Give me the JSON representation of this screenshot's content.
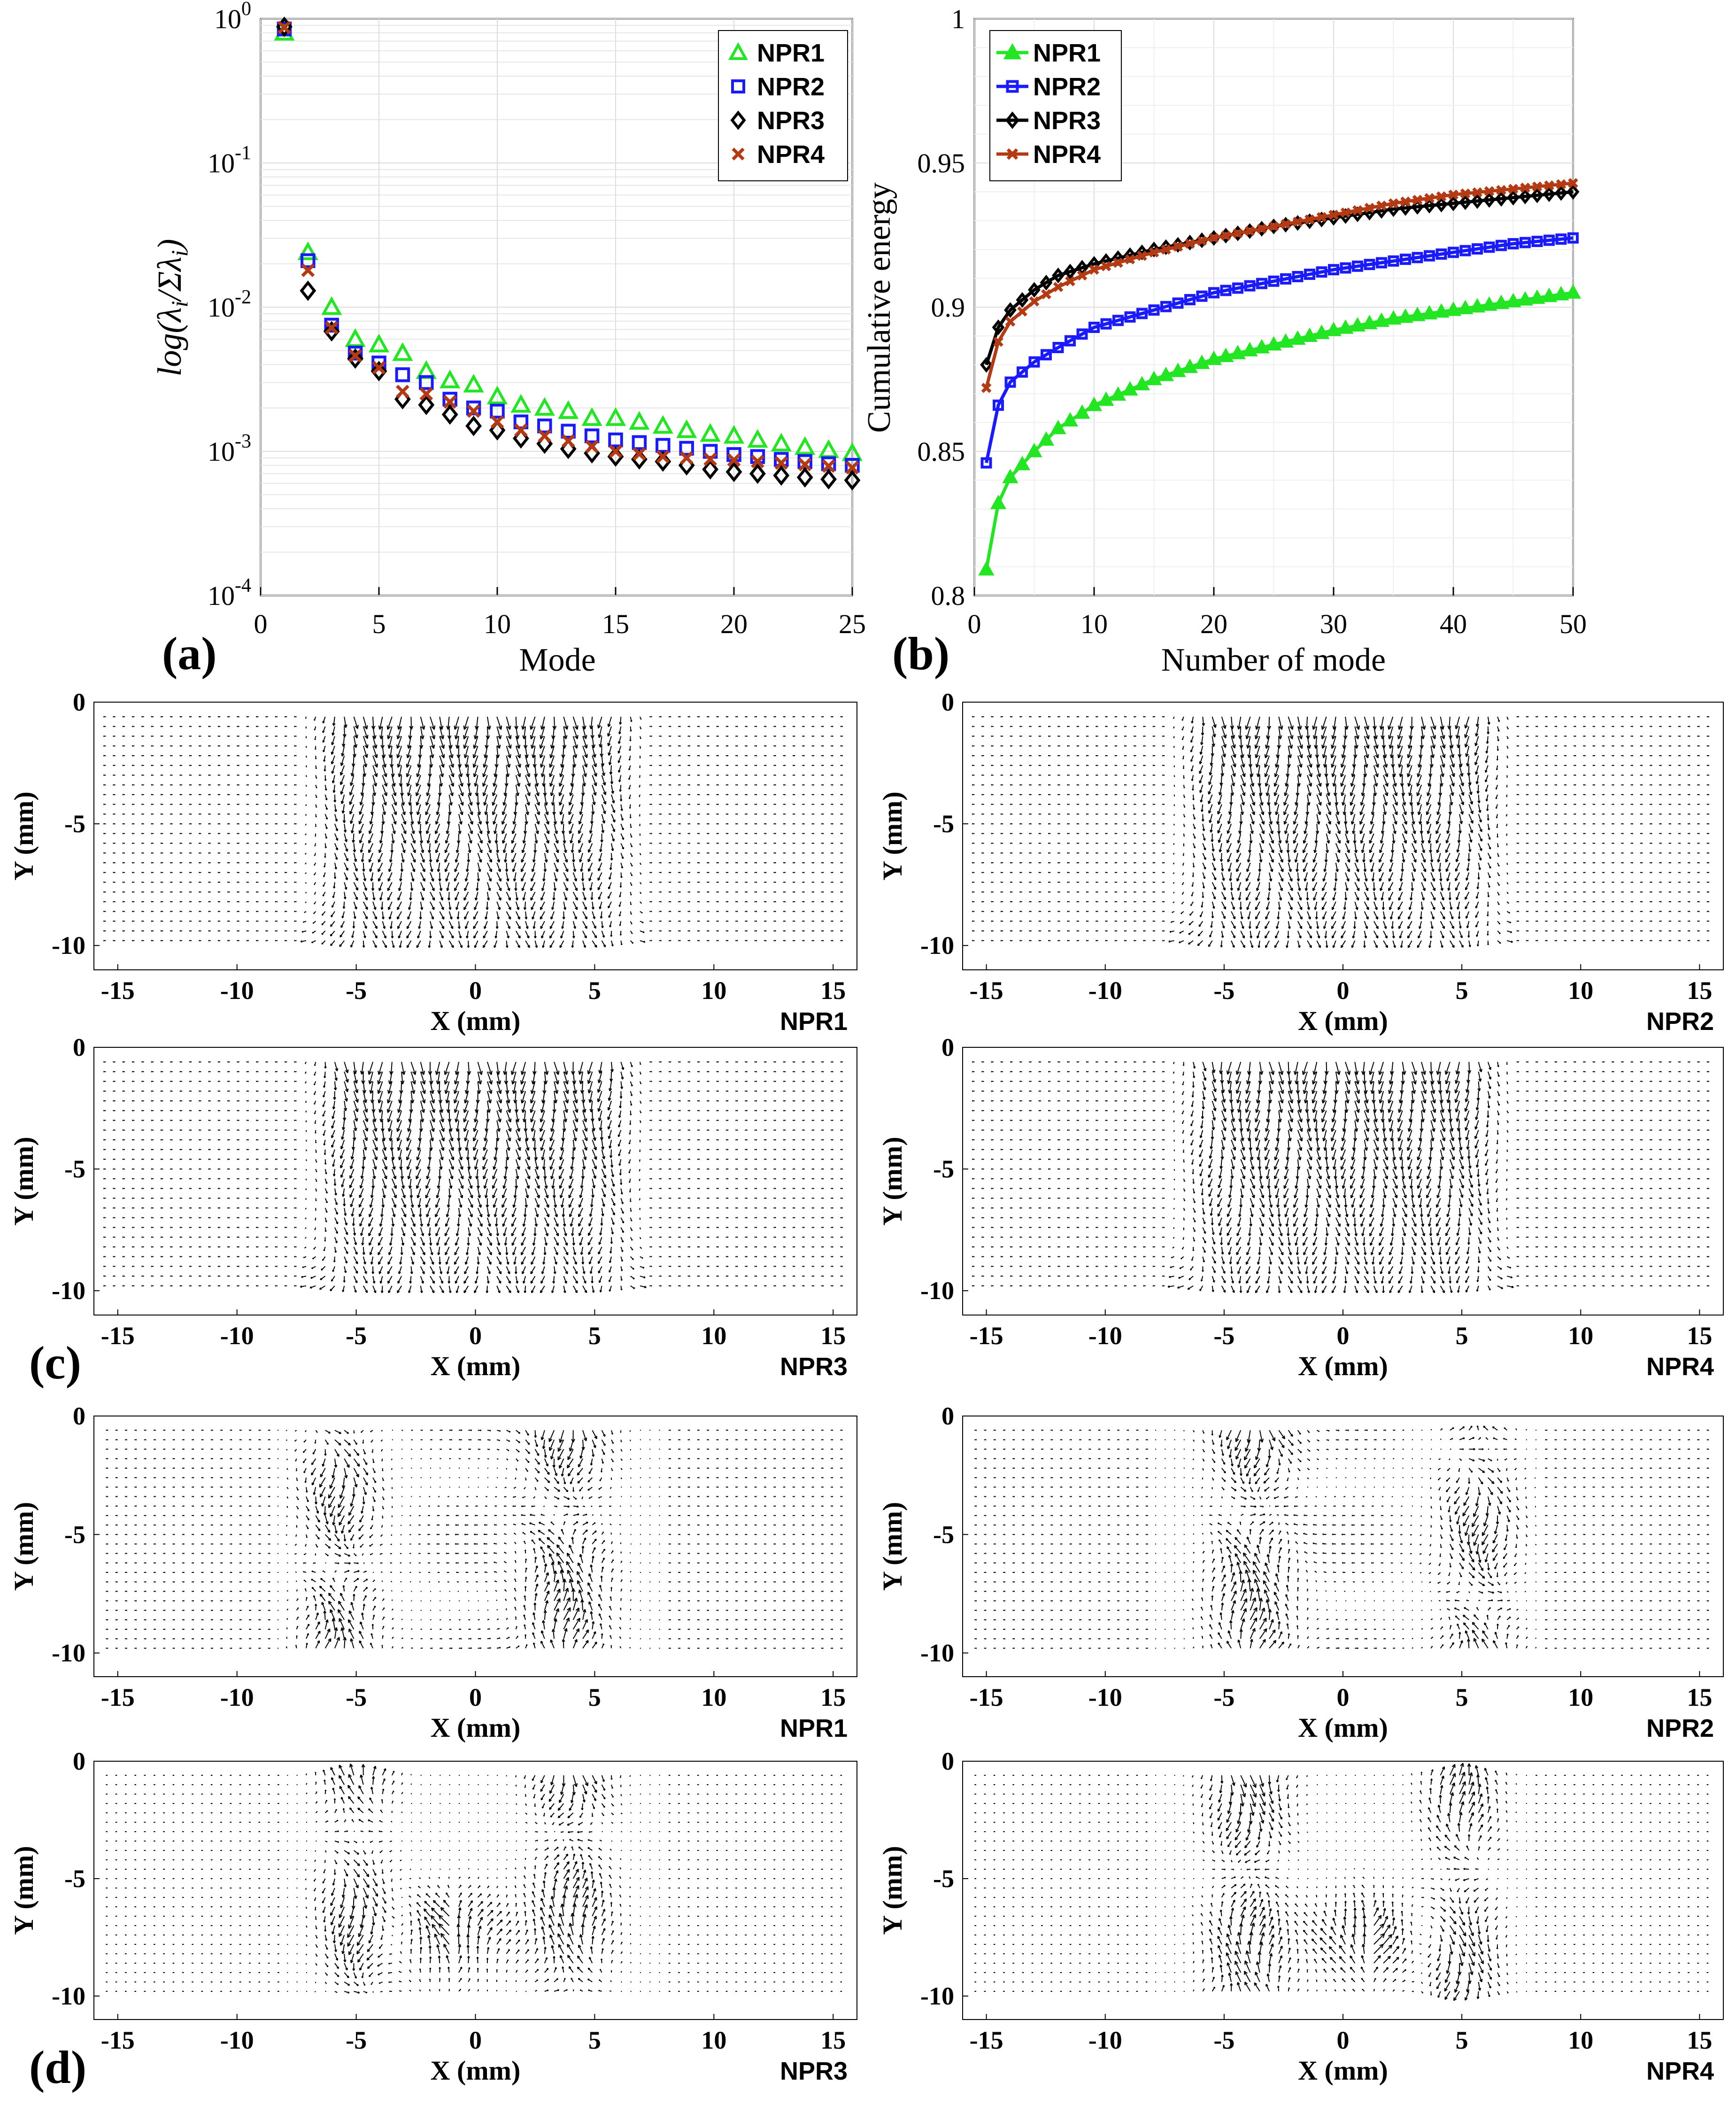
{
  "chart_data": [
    {
      "id": "a",
      "type": "scatter",
      "panel_label": "(a)",
      "xlabel": "Mode",
      "ylabel": "log(λi/Σλi)",
      "xlim": [
        0,
        25
      ],
      "ylim_log10": [
        -4,
        0
      ],
      "y_scale": "log",
      "x_ticks": [
        "0",
        "5",
        "10",
        "15",
        "20",
        "25"
      ],
      "y_ticks": [
        {
          "base": "10",
          "exp": "0"
        },
        {
          "base": "10",
          "exp": "-1"
        },
        {
          "base": "10",
          "exp": "-2"
        },
        {
          "base": "10",
          "exp": "-3"
        },
        {
          "base": "10",
          "exp": "-4"
        }
      ],
      "legend_position": "top-right",
      "grid": true,
      "series": [
        {
          "name": "NPR1",
          "marker": "triangle",
          "color": "#22e622",
          "x": [
            1,
            2,
            3,
            4,
            5,
            6,
            7,
            8,
            9,
            10,
            11,
            12,
            13,
            14,
            15,
            16,
            17,
            18,
            19,
            20,
            21,
            22,
            23,
            24,
            25
          ],
          "y": [
            0.8,
            0.024,
            0.01,
            0.006,
            0.0055,
            0.0048,
            0.0036,
            0.0031,
            0.0029,
            0.0024,
            0.0021,
            0.002,
            0.0019,
            0.0017,
            0.0017,
            0.0016,
            0.0015,
            0.0014,
            0.00132,
            0.00128,
            0.0012,
            0.00113,
            0.00107,
            0.00102,
            0.00097
          ]
        },
        {
          "name": "NPR2",
          "marker": "square",
          "color": "#1a1aff",
          "x": [
            1,
            2,
            3,
            4,
            5,
            6,
            7,
            8,
            9,
            10,
            11,
            12,
            13,
            14,
            15,
            16,
            17,
            18,
            19,
            20,
            21,
            22,
            23,
            24,
            25
          ],
          "y": [
            0.85,
            0.021,
            0.0075,
            0.0048,
            0.0041,
            0.0034,
            0.003,
            0.0023,
            0.002,
            0.0019,
            0.0016,
            0.0015,
            0.00138,
            0.00128,
            0.0012,
            0.00115,
            0.0011,
            0.00105,
            0.001,
            0.00095,
            0.00092,
            0.00088,
            0.00085,
            0.00082,
            0.0008
          ]
        },
        {
          "name": "NPR3",
          "marker": "diamond",
          "color": "#000000",
          "x": [
            1,
            2,
            3,
            4,
            5,
            6,
            7,
            8,
            9,
            10,
            11,
            12,
            13,
            14,
            15,
            16,
            17,
            18,
            19,
            20,
            21,
            22,
            23,
            24,
            25
          ],
          "y": [
            0.88,
            0.013,
            0.0068,
            0.0044,
            0.0036,
            0.0023,
            0.0021,
            0.0018,
            0.0015,
            0.0014,
            0.00123,
            0.00113,
            0.00104,
            0.00097,
            0.00092,
            0.00088,
            0.00085,
            0.0008,
            0.00075,
            0.00072,
            0.0007,
            0.00068,
            0.00066,
            0.00064,
            0.00063
          ]
        },
        {
          "name": "NPR4",
          "marker": "x",
          "color": "#b33a12",
          "x": [
            1,
            2,
            3,
            4,
            5,
            6,
            7,
            8,
            9,
            10,
            11,
            12,
            13,
            14,
            15,
            16,
            17,
            18,
            19,
            20,
            21,
            22,
            23,
            24,
            25
          ],
          "y": [
            0.87,
            0.018,
            0.0072,
            0.0046,
            0.0038,
            0.0026,
            0.0025,
            0.0022,
            0.0019,
            0.0016,
            0.0014,
            0.00128,
            0.00118,
            0.00108,
            0.001,
            0.00096,
            0.00092,
            0.0009,
            0.00088,
            0.00087,
            0.00085,
            0.00083,
            0.00081,
            0.00079,
            0.00077
          ]
        }
      ]
    },
    {
      "id": "b",
      "type": "line",
      "panel_label": "(b)",
      "xlabel": "Number of mode",
      "ylabel": "Cumulative energy",
      "xlim": [
        0,
        50
      ],
      "ylim": [
        0.8,
        1
      ],
      "x_ticks": [
        "0",
        "10",
        "20",
        "30",
        "40",
        "50"
      ],
      "y_ticks": [
        "0.8",
        "0.85",
        "0.9",
        "0.95",
        "1"
      ],
      "legend_position": "top-left",
      "grid": true,
      "series": [
        {
          "name": "NPR1",
          "marker": "triangle",
          "color": "#22e622",
          "anchors": [
            [
              1,
              0.809
            ],
            [
              2,
              0.832
            ],
            [
              3,
              0.841
            ],
            [
              5,
              0.85
            ],
            [
              7,
              0.858
            ],
            [
              10,
              0.866
            ],
            [
              15,
              0.875
            ],
            [
              20,
              0.882
            ],
            [
              25,
              0.887
            ],
            [
              30,
              0.892
            ],
            [
              35,
              0.896
            ],
            [
              40,
              0.899
            ],
            [
              45,
              0.902
            ],
            [
              50,
              0.905
            ]
          ]
        },
        {
          "name": "NPR2",
          "marker": "square",
          "color": "#1a1aff",
          "anchors": [
            [
              1,
              0.846
            ],
            [
              2,
              0.866
            ],
            [
              3,
              0.874
            ],
            [
              5,
              0.881
            ],
            [
              7,
              0.886
            ],
            [
              10,
              0.893
            ],
            [
              15,
              0.899
            ],
            [
              20,
              0.905
            ],
            [
              25,
              0.909
            ],
            [
              30,
              0.913
            ],
            [
              35,
              0.916
            ],
            [
              40,
              0.919
            ],
            [
              45,
              0.922
            ],
            [
              50,
              0.924
            ]
          ]
        },
        {
          "name": "NPR3",
          "marker": "diamond",
          "color": "#000000",
          "anchors": [
            [
              1,
              0.88
            ],
            [
              2,
              0.893
            ],
            [
              3,
              0.899
            ],
            [
              5,
              0.906
            ],
            [
              7,
              0.911
            ],
            [
              10,
              0.915
            ],
            [
              15,
              0.92
            ],
            [
              20,
              0.924
            ],
            [
              25,
              0.928
            ],
            [
              30,
              0.931
            ],
            [
              35,
              0.934
            ],
            [
              40,
              0.936
            ],
            [
              45,
              0.938
            ],
            [
              50,
              0.94
            ]
          ]
        },
        {
          "name": "NPR4",
          "marker": "x",
          "color": "#b33a12",
          "anchors": [
            [
              1,
              0.872
            ],
            [
              2,
              0.888
            ],
            [
              3,
              0.895
            ],
            [
              5,
              0.902
            ],
            [
              7,
              0.907
            ],
            [
              10,
              0.913
            ],
            [
              15,
              0.919
            ],
            [
              20,
              0.924
            ],
            [
              25,
              0.928
            ],
            [
              30,
              0.932
            ],
            [
              35,
              0.936
            ],
            [
              40,
              0.939
            ],
            [
              45,
              0.941
            ],
            [
              50,
              0.943
            ]
          ]
        }
      ]
    }
  ],
  "quiver_panels": [
    {
      "id": "c1",
      "group": "c",
      "title": "NPR1",
      "pattern": "mode1",
      "variant": 0
    },
    {
      "id": "c2",
      "group": "c",
      "title": "NPR2",
      "pattern": "mode1",
      "variant": 1
    },
    {
      "id": "c3",
      "group": "c",
      "title": "NPR3",
      "pattern": "mode1",
      "variant": 2
    },
    {
      "id": "c4",
      "group": "c",
      "title": "NPR4",
      "pattern": "mode1",
      "variant": 3
    },
    {
      "id": "d1",
      "group": "d",
      "title": "NPR1",
      "pattern": "mode2a",
      "variant": 0
    },
    {
      "id": "d2",
      "group": "d",
      "title": "NPR2",
      "pattern": "mode2b",
      "variant": 1
    },
    {
      "id": "d3",
      "group": "d",
      "title": "NPR3",
      "pattern": "mode3a",
      "variant": 2
    },
    {
      "id": "d4",
      "group": "d",
      "title": "NPR4",
      "pattern": "mode3b",
      "variant": 3
    }
  ],
  "quiver_axes": {
    "xlabel": "X (mm)",
    "ylabel": "Y (mm)",
    "xlim": [
      -16,
      16
    ],
    "ylim": [
      -11,
      0
    ],
    "x_ticks": [
      "-15",
      "-10",
      "-5",
      "0",
      "5",
      "10",
      "15"
    ],
    "y_ticks": [
      "0",
      "-5",
      "-10"
    ]
  },
  "panel_labels": {
    "c": "(c)",
    "d": "(d)"
  }
}
